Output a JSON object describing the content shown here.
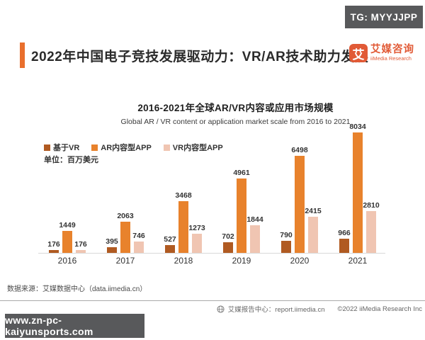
{
  "badge_top": {
    "label": "TG: MYYJJPP"
  },
  "header": {
    "title": "2022年中国电子竞技发展驱动力：VR/AR技术助力发展",
    "logo": {
      "glyph": "艾",
      "name_cn": "艾媒咨询",
      "name_en": "iiMedia Research"
    }
  },
  "chart": {
    "title": "2016-2021年全球AR/VR内容或应用市场规模",
    "subtitle": "Global AR / VR content or application market scale from 2016 to 2021",
    "unit_label": "单位：百万美元"
  },
  "chart_data": {
    "type": "bar",
    "title": "2016-2021年全球AR/VR内容或应用市场规模",
    "subtitle": "Global AR / VR content or application market scale from 2016 to 2021",
    "unit": "百万美元",
    "categories": [
      "2016",
      "2017",
      "2018",
      "2019",
      "2020",
      "2021"
    ],
    "series": [
      {
        "name": "基于VR",
        "color": "#b05a21",
        "values": [
          176,
          395,
          527,
          702,
          790,
          966
        ]
      },
      {
        "name": "AR内容型APP",
        "color": "#e8822c",
        "values": [
          1449,
          2063,
          3468,
          4961,
          6498,
          8034
        ]
      },
      {
        "name": "VR内容型APP",
        "color": "#f0c5b2",
        "values": [
          176,
          746,
          1273,
          1844,
          2415,
          2810
        ]
      }
    ],
    "ylim": [
      0,
      8034
    ],
    "grid": false,
    "legend_position": "top-left",
    "value_labels": true
  },
  "footer": {
    "source": "数据来源：艾媒数据中心（data.iimedia.cn）",
    "report_center": "艾媒报告中心：report.iimedia.cn",
    "copyright": "©2022  iiMedia Research  Inc"
  },
  "badge_bottom": {
    "label": "www.zn-pc-kaiyunsports.com"
  }
}
